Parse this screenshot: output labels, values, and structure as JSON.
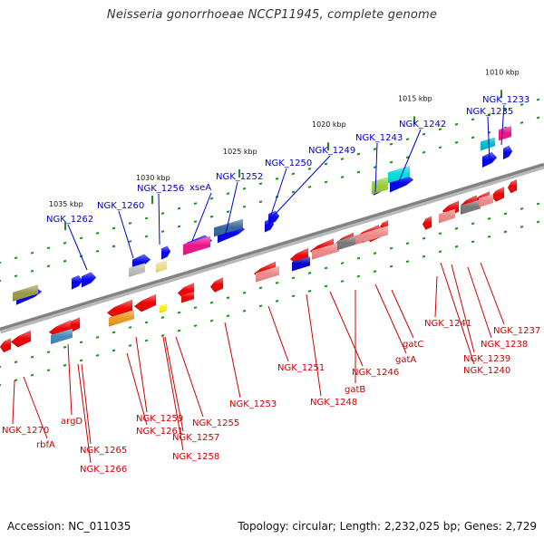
{
  "title": "Neisseria gonorrhoeae NCCP11945, complete genome",
  "footer": {
    "accession": "Accession: NC_011035",
    "summary": "Topology: circular; Length: 2,232,025 bp; Genes: 2,729"
  },
  "colors": {
    "background": "#ffffff",
    "backbone": "#808080",
    "forward_label": "#0000cc",
    "reverse_label": "#cc0000",
    "tick_mark": "#228b22"
  },
  "ruler": {
    "unit": "kbp",
    "ticks": [
      {
        "position_kbp": 1010,
        "label": "1010 kbp"
      },
      {
        "position_kbp": 1015,
        "label": "1015 kbp"
      },
      {
        "position_kbp": 1020,
        "label": "1020 kbp"
      },
      {
        "position_kbp": 1025,
        "label": "1025 kbp"
      },
      {
        "position_kbp": 1030,
        "label": "1030 kbp"
      },
      {
        "position_kbp": 1035,
        "label": "1035 kbp"
      }
    ]
  },
  "genes_forward": [
    {
      "label": "NGK_1233",
      "color": "#0000ee"
    },
    {
      "label": "NGK_1235",
      "color": "#0000ee"
    },
    {
      "label": "NGK_1242",
      "color": "#0000ee"
    },
    {
      "label": "NGK_1243",
      "color": "#0000ee"
    },
    {
      "label": "NGK_1249",
      "color": "#0000ee"
    },
    {
      "label": "NGK_1250",
      "color": "#0000ee"
    },
    {
      "label": "NGK_1252",
      "color": "#0000ee"
    },
    {
      "label": "xseA",
      "color": "#0000ee"
    },
    {
      "label": "NGK_1256",
      "color": "#0000ee"
    },
    {
      "label": "NGK_1260",
      "color": "#0000ee"
    },
    {
      "label": "NGK_1262",
      "color": "#0000ee"
    }
  ],
  "genes_reverse": [
    {
      "label": "NGK_1237",
      "color": "#ee0000"
    },
    {
      "label": "NGK_1238",
      "color": "#ee0000"
    },
    {
      "label": "NGK_1239",
      "color": "#ee0000"
    },
    {
      "label": "NGK_1240",
      "color": "#ee0000"
    },
    {
      "label": "NGK_1241",
      "color": "#ee0000"
    },
    {
      "label": "gatC",
      "color": "#ee0000"
    },
    {
      "label": "gatA",
      "color": "#ee0000"
    },
    {
      "label": "gatB",
      "color": "#ee0000"
    },
    {
      "label": "NGK_1246",
      "color": "#ee0000"
    },
    {
      "label": "NGK_1248",
      "color": "#ee0000"
    },
    {
      "label": "NGK_1251",
      "color": "#ee0000"
    },
    {
      "label": "NGK_1253",
      "color": "#ee0000"
    },
    {
      "label": "NGK_1255",
      "color": "#ee0000"
    },
    {
      "label": "NGK_1257",
      "color": "#ee0000"
    },
    {
      "label": "NGK_1258",
      "color": "#ee0000"
    },
    {
      "label": "NGK_1259",
      "color": "#ee0000"
    },
    {
      "label": "NGK_1261",
      "color": "#ee0000"
    },
    {
      "label": "argD",
      "color": "#ee0000"
    },
    {
      "label": "NGK_1265",
      "color": "#ee0000"
    },
    {
      "label": "NGK_1266",
      "color": "#ee0000"
    },
    {
      "label": "rbfA",
      "color": "#ee0000"
    },
    {
      "label": "NGK_1270",
      "color": "#ee0000"
    }
  ]
}
